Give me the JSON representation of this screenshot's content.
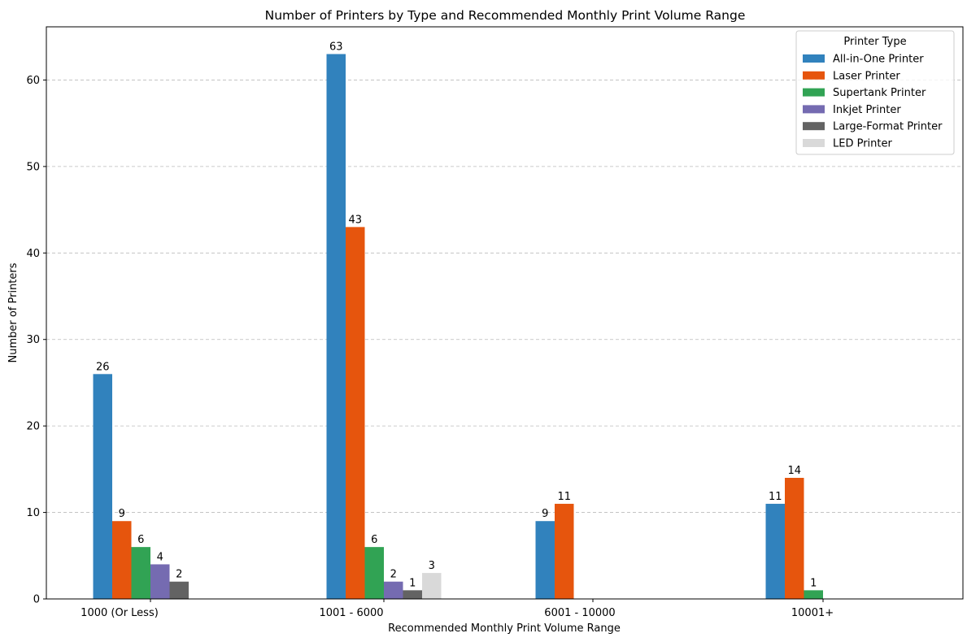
{
  "chart_data": {
    "type": "bar",
    "title": "Number of Printers by Type and Recommended Monthly Print Volume Range",
    "xlabel": "Recommended Monthly Print Volume Range",
    "ylabel": "Number of Printers",
    "ylim": [
      0,
      66.15
    ],
    "yticks": [
      0,
      10,
      20,
      30,
      40,
      50,
      60
    ],
    "grid": "y-dashed",
    "legend": {
      "title": "Printer Type",
      "placement": "top-right"
    },
    "categories": [
      "1000 (Or Less)",
      "1001 - 6000",
      "6001 - 10000",
      "10001+"
    ],
    "series": [
      {
        "name": "All-in-One Printer",
        "color": "#3182bd",
        "values": [
          26,
          63,
          9,
          11
        ]
      },
      {
        "name": "Laser Printer",
        "color": "#e6550d",
        "values": [
          9,
          43,
          11,
          14
        ]
      },
      {
        "name": "Supertank Printer",
        "color": "#31a354",
        "values": [
          6,
          6,
          null,
          1
        ]
      },
      {
        "name": "Inkjet Printer",
        "color": "#756bb1",
        "values": [
          4,
          2,
          null,
          null
        ]
      },
      {
        "name": "Large-Format Printer",
        "color": "#636363",
        "values": [
          2,
          1,
          null,
          null
        ]
      },
      {
        "name": "LED Printer",
        "color": "#d9d9d9",
        "values": [
          null,
          3,
          null,
          null
        ]
      }
    ]
  }
}
